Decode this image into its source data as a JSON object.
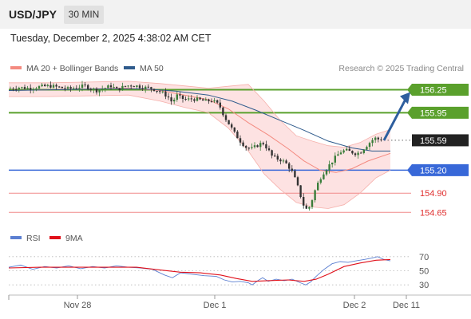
{
  "header": {
    "symbol": "USD/JPY",
    "timeframe": "30 MIN",
    "datetime": "Tuesday, December 2, 2025 4:38:02 AM CET"
  },
  "legend": {
    "items": [
      {
        "label": "MA 20 + Bollinger Bands",
        "color": "#f48a80"
      },
      {
        "label": "MA 50",
        "color": "#2f5b8c"
      }
    ],
    "credit": "Research © 2025 Trading Central"
  },
  "rsi_legend": {
    "items": [
      {
        "label": "RSI",
        "color": "#5b7fd1"
      },
      {
        "label": "9MA",
        "color": "#e0101a"
      }
    ]
  },
  "chart_data": [
    {
      "type": "candlestick",
      "title": "USD/JPY",
      "ylim": [
        154.58,
        156.38
      ],
      "x_ticks": [
        "Nov 28",
        "Dec 1",
        "Dec 2",
        "Dec 11"
      ],
      "last_price": 155.59,
      "levels": [
        {
          "value": 156.25,
          "label": "156.25",
          "style": "resistance",
          "color": "#5aa02c"
        },
        {
          "value": 155.95,
          "label": "155.95",
          "style": "resistance",
          "color": "#5aa02c"
        },
        {
          "value": 155.59,
          "label": "155.59",
          "style": "last",
          "color": "#222222"
        },
        {
          "value": 155.2,
          "label": "155.20",
          "style": "pivot",
          "color": "#3868d8"
        },
        {
          "value": 154.9,
          "label": "154.90",
          "style": "support",
          "color": "#e04040"
        },
        {
          "value": 154.65,
          "label": "154.65",
          "style": "support",
          "color": "#e04040"
        }
      ],
      "forecast_arrow": {
        "from": 155.59,
        "to": 156.25,
        "color": "#2e5e9e"
      },
      "close_path": [
        [
          0,
          156.26
        ],
        [
          12,
          156.28
        ],
        [
          25,
          156.27
        ],
        [
          40,
          156.29
        ],
        [
          52,
          156.3
        ],
        [
          63,
          156.28
        ],
        [
          75,
          156.26
        ],
        [
          85,
          156.28
        ],
        [
          95,
          156.3
        ],
        [
          102,
          156.27
        ],
        [
          110,
          156.24
        ],
        [
          120,
          156.27
        ],
        [
          128,
          156.3
        ],
        [
          136,
          156.25
        ],
        [
          144,
          156.29
        ],
        [
          152,
          156.31
        ],
        [
          160,
          156.3
        ],
        [
          168,
          156.28
        ],
        [
          178,
          156.27
        ],
        [
          186,
          156.24
        ],
        [
          194,
          156.2
        ],
        [
          200,
          156.15
        ],
        [
          205,
          156.08
        ],
        [
          210,
          156.18
        ],
        [
          216,
          156.14
        ],
        [
          222,
          156.12
        ],
        [
          230,
          156.13
        ],
        [
          238,
          156.12
        ],
        [
          246,
          156.1
        ],
        [
          254,
          156.11
        ],
        [
          260,
          156.08
        ],
        [
          265,
          156.02
        ],
        [
          270,
          155.9
        ],
        [
          276,
          155.8
        ],
        [
          283,
          155.68
        ],
        [
          290,
          155.58
        ],
        [
          297,
          155.5
        ],
        [
          304,
          155.48
        ],
        [
          311,
          155.52
        ],
        [
          318,
          155.56
        ],
        [
          324,
          155.48
        ],
        [
          330,
          155.38
        ],
        [
          336,
          155.35
        ],
        [
          342,
          155.33
        ],
        [
          348,
          155.28
        ],
        [
          354,
          155.2
        ],
        [
          360,
          155.05
        ],
        [
          366,
          154.85
        ],
        [
          370,
          154.72
        ],
        [
          374,
          154.68
        ],
        [
          378,
          154.75
        ],
        [
          383,
          154.92
        ],
        [
          388,
          155.05
        ],
        [
          393,
          155.15
        ],
        [
          398,
          155.22
        ],
        [
          404,
          155.3
        ],
        [
          410,
          155.38
        ],
        [
          416,
          155.44
        ],
        [
          422,
          155.46
        ],
        [
          428,
          155.44
        ],
        [
          434,
          155.42
        ],
        [
          440,
          155.43
        ],
        [
          446,
          155.5
        ],
        [
          452,
          155.56
        ],
        [
          458,
          155.62
        ],
        [
          464,
          155.6
        ],
        [
          470,
          155.62
        ],
        [
          476,
          155.59
        ]
      ],
      "ma20": [
        [
          0,
          156.24
        ],
        [
          50,
          156.25
        ],
        [
          100,
          156.26
        ],
        [
          150,
          156.27
        ],
        [
          190,
          156.24
        ],
        [
          220,
          156.18
        ],
        [
          250,
          156.12
        ],
        [
          275,
          156.0
        ],
        [
          300,
          155.82
        ],
        [
          325,
          155.66
        ],
        [
          350,
          155.48
        ],
        [
          370,
          155.32
        ],
        [
          390,
          155.2
        ],
        [
          410,
          155.17
        ],
        [
          430,
          155.22
        ],
        [
          450,
          155.32
        ],
        [
          478,
          155.42
        ]
      ],
      "ma50": [
        [
          0,
          156.24
        ],
        [
          60,
          156.25
        ],
        [
          120,
          156.26
        ],
        [
          170,
          156.26
        ],
        [
          210,
          156.23
        ],
        [
          250,
          156.18
        ],
        [
          280,
          156.1
        ],
        [
          310,
          155.98
        ],
        [
          340,
          155.85
        ],
        [
          370,
          155.72
        ],
        [
          400,
          155.58
        ],
        [
          430,
          155.49
        ],
        [
          455,
          155.45
        ],
        [
          478,
          155.45
        ]
      ],
      "bb_upper": [
        [
          0,
          156.34
        ],
        [
          50,
          156.34
        ],
        [
          100,
          156.35
        ],
        [
          150,
          156.36
        ],
        [
          190,
          156.33
        ],
        [
          220,
          156.3
        ],
        [
          250,
          156.27
        ],
        [
          280,
          156.3
        ],
        [
          300,
          156.32
        ],
        [
          320,
          156.1
        ],
        [
          340,
          155.85
        ],
        [
          360,
          155.65
        ],
        [
          380,
          155.58
        ],
        [
          400,
          155.52
        ],
        [
          420,
          155.5
        ],
        [
          440,
          155.56
        ],
        [
          460,
          155.67
        ],
        [
          478,
          155.73
        ]
      ],
      "bb_lower": [
        [
          0,
          156.16
        ],
        [
          50,
          156.16
        ],
        [
          100,
          156.17
        ],
        [
          150,
          156.18
        ],
        [
          190,
          156.1
        ],
        [
          220,
          156.02
        ],
        [
          250,
          155.95
        ],
        [
          275,
          155.75
        ],
        [
          300,
          155.45
        ],
        [
          320,
          155.15
        ],
        [
          340,
          154.95
        ],
        [
          360,
          154.78
        ],
        [
          380,
          154.72
        ],
        [
          400,
          154.7
        ],
        [
          420,
          154.75
        ],
        [
          440,
          154.9
        ],
        [
          460,
          155.1
        ],
        [
          478,
          155.2
        ]
      ]
    },
    {
      "type": "line",
      "title": "RSI",
      "ylim": [
        20,
        80
      ],
      "y_ticks": [
        70,
        50,
        30
      ],
      "series": [
        {
          "name": "RSI",
          "color": "#5b7fd1",
          "points": [
            [
              0,
              55
            ],
            [
              15,
              58
            ],
            [
              30,
              52
            ],
            [
              45,
              56
            ],
            [
              60,
              54
            ],
            [
              75,
              57
            ],
            [
              90,
              53
            ],
            [
              105,
              56
            ],
            [
              120,
              54
            ],
            [
              135,
              57
            ],
            [
              150,
              55
            ],
            [
              165,
              54
            ],
            [
              180,
              52
            ],
            [
              195,
              44
            ],
            [
              205,
              40
            ],
            [
              215,
              47
            ],
            [
              230,
              45
            ],
            [
              245,
              43
            ],
            [
              260,
              42
            ],
            [
              270,
              37
            ],
            [
              280,
              34
            ],
            [
              290,
              35
            ],
            [
              300,
              33
            ],
            [
              305,
              30
            ],
            [
              312,
              36
            ],
            [
              318,
              40
            ],
            [
              325,
              35
            ],
            [
              335,
              38
            ],
            [
              345,
              36
            ],
            [
              355,
              38
            ],
            [
              365,
              33
            ],
            [
              372,
              30
            ],
            [
              378,
              34
            ],
            [
              385,
              42
            ],
            [
              395,
              52
            ],
            [
              405,
              60
            ],
            [
              415,
              63
            ],
            [
              425,
              62
            ],
            [
              435,
              64
            ],
            [
              445,
              66
            ],
            [
              455,
              68
            ],
            [
              462,
              70
            ],
            [
              470,
              66
            ],
            [
              478,
              64
            ]
          ]
        },
        {
          "name": "9MA",
          "color": "#e0101a",
          "points": [
            [
              0,
              54
            ],
            [
              40,
              55
            ],
            [
              80,
              55
            ],
            [
              120,
              55
            ],
            [
              160,
              55
            ],
            [
              190,
              51
            ],
            [
              215,
              48
            ],
            [
              240,
              47
            ],
            [
              265,
              44
            ],
            [
              285,
              39
            ],
            [
              305,
              35
            ],
            [
              325,
              36
            ],
            [
              350,
              37
            ],
            [
              370,
              35
            ],
            [
              385,
              38
            ],
            [
              400,
              45
            ],
            [
              420,
              56
            ],
            [
              440,
              61
            ],
            [
              460,
              65
            ],
            [
              478,
              66
            ]
          ]
        }
      ]
    }
  ]
}
